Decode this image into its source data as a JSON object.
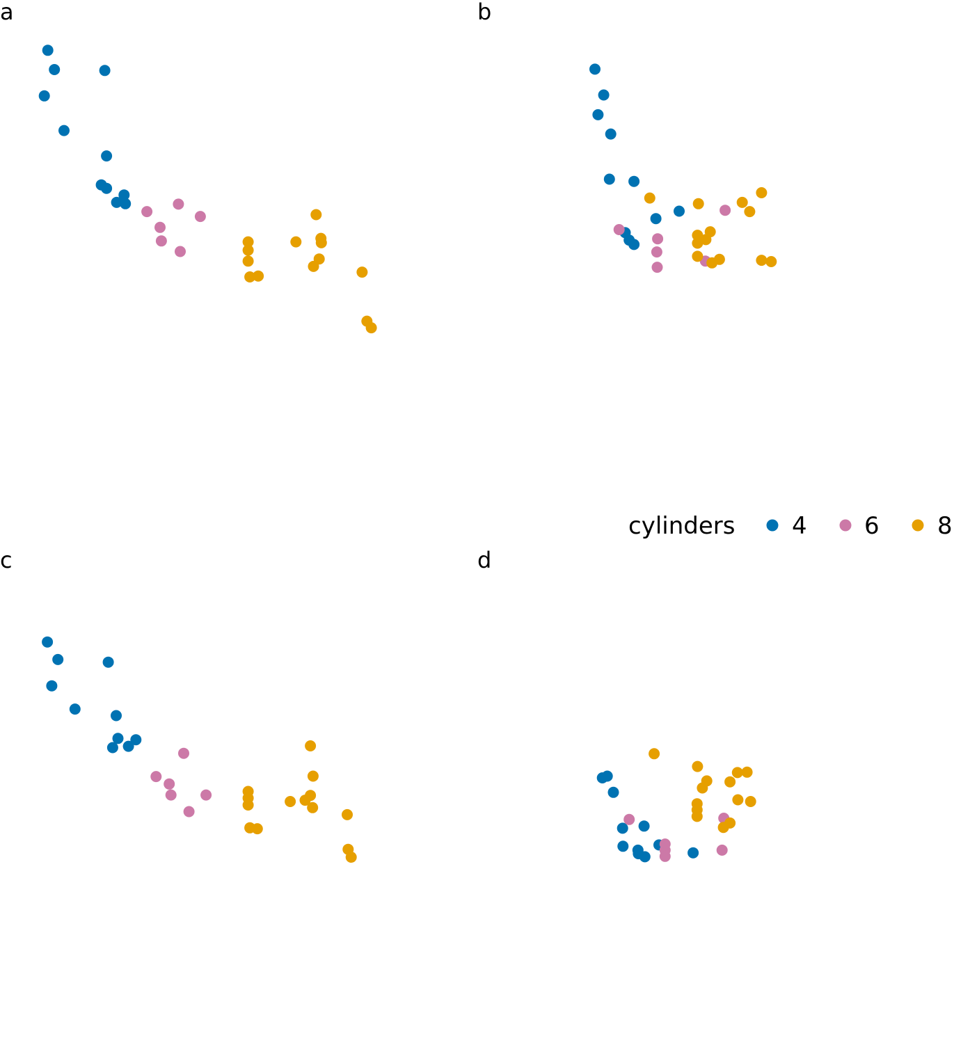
{
  "colors": {
    "4": "#0072B2",
    "6": "#CC79A7",
    "8": "#E69F00"
  },
  "legend": {
    "title": "cylinders",
    "entries": [
      {
        "label": "4",
        "key": "4"
      },
      {
        "label": "6",
        "key": "6"
      },
      {
        "label": "8",
        "key": "8"
      }
    ]
  },
  "chart_data": [
    {
      "type": "scatter",
      "tag": "a",
      "title": "",
      "xlabel": "",
      "ylabel": "",
      "grid": false,
      "axes": false,
      "xlim": [
        0,
        10
      ],
      "ylim": [
        0,
        10
      ],
      "series": [
        {
          "name": "4",
          "points": [
            [
              0.9,
              9.17
            ],
            [
              1.05,
              8.73
            ],
            [
              0.82,
              8.13
            ],
            [
              1.27,
              7.34
            ],
            [
              2.2,
              8.71
            ],
            [
              2.24,
              6.76
            ],
            [
              2.12,
              6.1
            ],
            [
              2.24,
              6.02
            ],
            [
              2.47,
              5.7
            ],
            [
              2.64,
              5.87
            ],
            [
              2.67,
              5.67
            ]
          ]
        },
        {
          "name": "6",
          "points": [
            [
              3.16,
              5.49
            ],
            [
              3.88,
              5.66
            ],
            [
              4.38,
              5.38
            ],
            [
              3.46,
              5.13
            ],
            [
              3.49,
              4.82
            ],
            [
              3.92,
              4.58
            ]
          ]
        },
        {
          "name": "8",
          "points": [
            [
              7.02,
              5.42
            ],
            [
              5.47,
              4.8
            ],
            [
              5.47,
              4.61
            ],
            [
              5.47,
              4.36
            ],
            [
              5.51,
              4.0
            ],
            [
              5.7,
              4.02
            ],
            [
              6.56,
              4.8
            ],
            [
              7.13,
              4.88
            ],
            [
              7.14,
              4.78
            ],
            [
              7.09,
              4.41
            ],
            [
              6.96,
              4.24
            ],
            [
              8.07,
              4.11
            ],
            [
              8.18,
              2.99
            ],
            [
              8.28,
              2.84
            ]
          ]
        }
      ]
    },
    {
      "type": "scatter",
      "tag": "b",
      "title": "",
      "xlabel": "",
      "ylabel": "",
      "grid": false,
      "axes": false,
      "xlim": [
        0,
        10
      ],
      "ylim": [
        0,
        10
      ],
      "series": [
        {
          "name": "4",
          "points": [
            [
              2.54,
              8.74
            ],
            [
              2.74,
              8.15
            ],
            [
              2.61,
              7.7
            ],
            [
              2.9,
              7.26
            ],
            [
              2.87,
              6.23
            ],
            [
              3.43,
              6.18
            ],
            [
              3.93,
              5.33
            ],
            [
              4.46,
              5.5
            ],
            [
              3.23,
              5.01
            ],
            [
              3.32,
              4.84
            ],
            [
              3.43,
              4.74
            ]
          ]
        },
        {
          "name": "6",
          "points": [
            [
              3.09,
              5.08
            ],
            [
              3.97,
              4.87
            ],
            [
              3.95,
              4.57
            ],
            [
              3.96,
              4.22
            ],
            [
              5.06,
              4.36
            ],
            [
              5.51,
              5.52
            ]
          ]
        },
        {
          "name": "8",
          "points": [
            [
              3.79,
              5.8
            ],
            [
              4.9,
              5.67
            ],
            [
              4.88,
              4.95
            ],
            [
              4.88,
              4.77
            ],
            [
              5.07,
              4.85
            ],
            [
              5.17,
              5.03
            ],
            [
              4.88,
              4.47
            ],
            [
              5.21,
              4.32
            ],
            [
              5.38,
              4.4
            ],
            [
              5.9,
              5.7
            ],
            [
              6.07,
              5.49
            ],
            [
              6.34,
              5.92
            ],
            [
              6.34,
              4.38
            ],
            [
              6.56,
              4.35
            ]
          ]
        }
      ]
    },
    {
      "type": "scatter",
      "tag": "c",
      "title": "",
      "xlabel": "",
      "ylabel": "",
      "grid": false,
      "axes": false,
      "xlim": [
        0,
        10
      ],
      "ylim": [
        0,
        10
      ],
      "series": [
        {
          "name": "4",
          "points": [
            [
              0.89,
              8.37
            ],
            [
              1.13,
              7.97
            ],
            [
              0.99,
              7.37
            ],
            [
              1.52,
              6.84
            ],
            [
              2.28,
              7.91
            ],
            [
              2.46,
              6.69
            ],
            [
              2.5,
              6.17
            ],
            [
              2.38,
              5.96
            ],
            [
              2.74,
              5.99
            ],
            [
              2.91,
              6.14
            ]
          ]
        },
        {
          "name": "6",
          "points": [
            [
              4.0,
              5.83
            ],
            [
              3.37,
              5.3
            ],
            [
              3.67,
              5.13
            ],
            [
              3.71,
              4.88
            ],
            [
              4.51,
              4.88
            ],
            [
              4.12,
              4.5
            ]
          ]
        },
        {
          "name": "8",
          "points": [
            [
              6.89,
              6.0
            ],
            [
              6.95,
              5.31
            ],
            [
              5.47,
              4.96
            ],
            [
              5.47,
              4.81
            ],
            [
              5.47,
              4.65
            ],
            [
              5.51,
              4.13
            ],
            [
              5.68,
              4.11
            ],
            [
              6.43,
              4.73
            ],
            [
              6.77,
              4.76
            ],
            [
              6.89,
              4.87
            ],
            [
              6.94,
              4.59
            ],
            [
              7.73,
              4.43
            ],
            [
              7.75,
              3.64
            ],
            [
              7.82,
              3.46
            ]
          ]
        }
      ]
    },
    {
      "type": "scatter",
      "tag": "d",
      "title": "",
      "xlabel": "",
      "ylabel": "",
      "grid": false,
      "axes": false,
      "xlim": [
        0,
        10
      ],
      "ylim": [
        0,
        10
      ],
      "series": [
        {
          "name": "4",
          "points": [
            [
              2.71,
              5.27
            ],
            [
              2.82,
              5.31
            ],
            [
              2.96,
              4.94
            ],
            [
              3.17,
              4.12
            ],
            [
              3.66,
              4.17
            ],
            [
              3.18,
              3.71
            ],
            [
              3.53,
              3.54
            ],
            [
              3.68,
              3.47
            ],
            [
              3.52,
              3.62
            ],
            [
              4.0,
              3.74
            ],
            [
              4.78,
              3.56
            ]
          ]
        },
        {
          "name": "6",
          "points": [
            [
              3.32,
              4.32
            ],
            [
              4.14,
              3.76
            ],
            [
              4.14,
              3.62
            ],
            [
              4.14,
              3.48
            ],
            [
              5.48,
              4.35
            ],
            [
              5.44,
              3.62
            ]
          ]
        },
        {
          "name": "8",
          "points": [
            [
              3.89,
              5.82
            ],
            [
              4.88,
              5.53
            ],
            [
              5.09,
              5.2
            ],
            [
              4.99,
              5.04
            ],
            [
              4.87,
              4.68
            ],
            [
              4.87,
              4.54
            ],
            [
              4.87,
              4.39
            ],
            [
              5.62,
              5.18
            ],
            [
              5.79,
              5.39
            ],
            [
              6.01,
              5.4
            ],
            [
              5.8,
              4.77
            ],
            [
              6.09,
              4.73
            ],
            [
              5.47,
              4.14
            ],
            [
              5.62,
              4.24
            ]
          ]
        }
      ]
    }
  ]
}
